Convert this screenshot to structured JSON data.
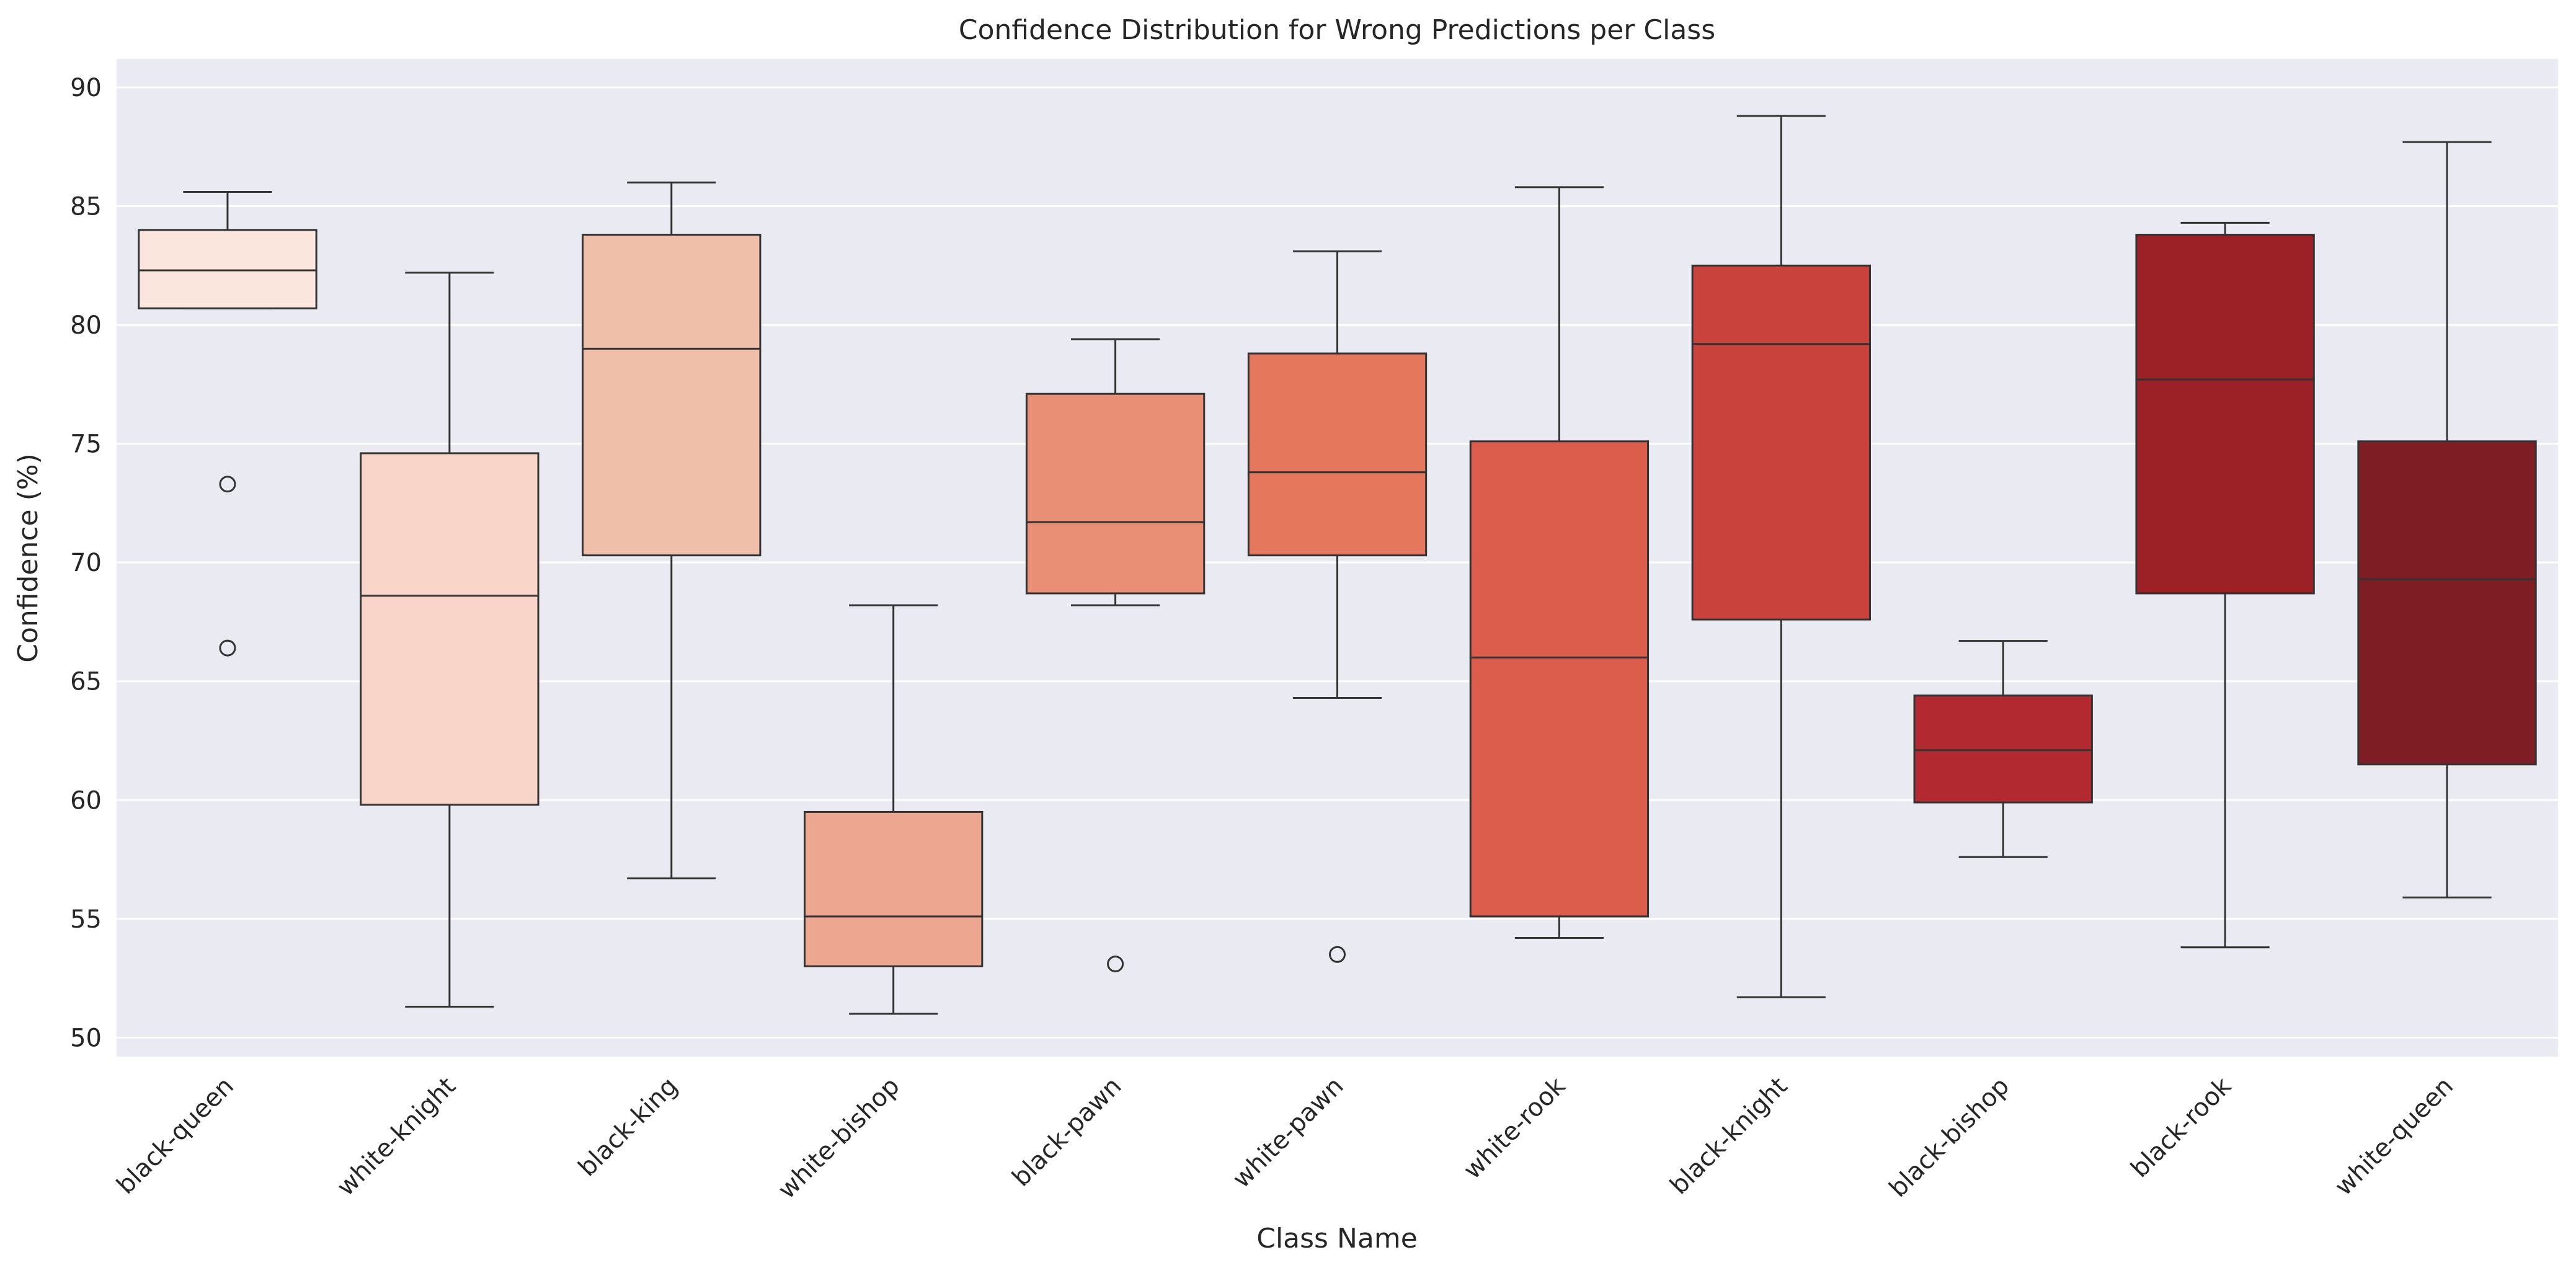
{
  "chart_data": {
    "type": "box",
    "title": "Confidence Distribution for Wrong Predictions per Class",
    "xlabel": "Class Name",
    "ylabel": "Confidence (%)",
    "ylim": [
      49.2,
      91.2
    ],
    "yticks": [
      50,
      55,
      60,
      65,
      70,
      75,
      80,
      85,
      90
    ],
    "grid": true,
    "categories": [
      "black-queen",
      "white-knight",
      "black-king",
      "white-bishop",
      "black-pawn",
      "white-pawn",
      "white-rook",
      "black-knight",
      "black-bishop",
      "black-rook",
      "white-queen"
    ],
    "boxes": [
      {
        "whislo": 80.7,
        "q1": 80.7,
        "med": 82.3,
        "q3": 84.0,
        "whishi": 85.6,
        "fliers": [
          73.3,
          66.4
        ],
        "color": "#fbe6de"
      },
      {
        "whislo": 51.3,
        "q1": 59.8,
        "med": 68.6,
        "q3": 74.6,
        "whishi": 82.2,
        "fliers": [],
        "color": "#f8d5c8"
      },
      {
        "whislo": 56.7,
        "q1": 70.3,
        "med": 79.0,
        "q3": 83.8,
        "whishi": 86.0,
        "fliers": [],
        "color": "#f0bfaa"
      },
      {
        "whislo": 51.0,
        "q1": 53.0,
        "med": 55.1,
        "q3": 59.5,
        "whishi": 68.2,
        "fliers": [],
        "color": "#eda790"
      },
      {
        "whislo": 68.2,
        "q1": 68.7,
        "med": 71.7,
        "q3": 77.1,
        "whishi": 79.4,
        "fliers": [
          53.1
        ],
        "color": "#e98f75"
      },
      {
        "whislo": 64.3,
        "q1": 70.3,
        "med": 73.8,
        "q3": 78.8,
        "whishi": 83.1,
        "fliers": [
          53.5
        ],
        "color": "#e5775d"
      },
      {
        "whislo": 54.2,
        "q1": 55.1,
        "med": 66.0,
        "q3": 75.1,
        "whishi": 85.8,
        "fliers": [],
        "color": "#dc5d4c"
      },
      {
        "whislo": 51.7,
        "q1": 67.6,
        "med": 79.2,
        "q3": 82.5,
        "whishi": 88.8,
        "fliers": [],
        "color": "#c9423c"
      },
      {
        "whislo": 57.6,
        "q1": 59.9,
        "med": 62.1,
        "q3": 64.4,
        "whishi": 66.7,
        "fliers": [],
        "color": "#b22a30"
      },
      {
        "whislo": 53.8,
        "q1": 68.7,
        "med": 77.7,
        "q3": 83.8,
        "whishi": 84.3,
        "fliers": [],
        "color": "#9b2127"
      },
      {
        "whislo": 55.9,
        "q1": 61.5,
        "med": 69.3,
        "q3": 75.1,
        "whishi": 87.7,
        "fliers": [],
        "color": "#7f1d24"
      }
    ],
    "colors": {
      "plot_background": "#eaeaf2",
      "grid": "#ffffff",
      "box_edge": "#333333"
    }
  }
}
